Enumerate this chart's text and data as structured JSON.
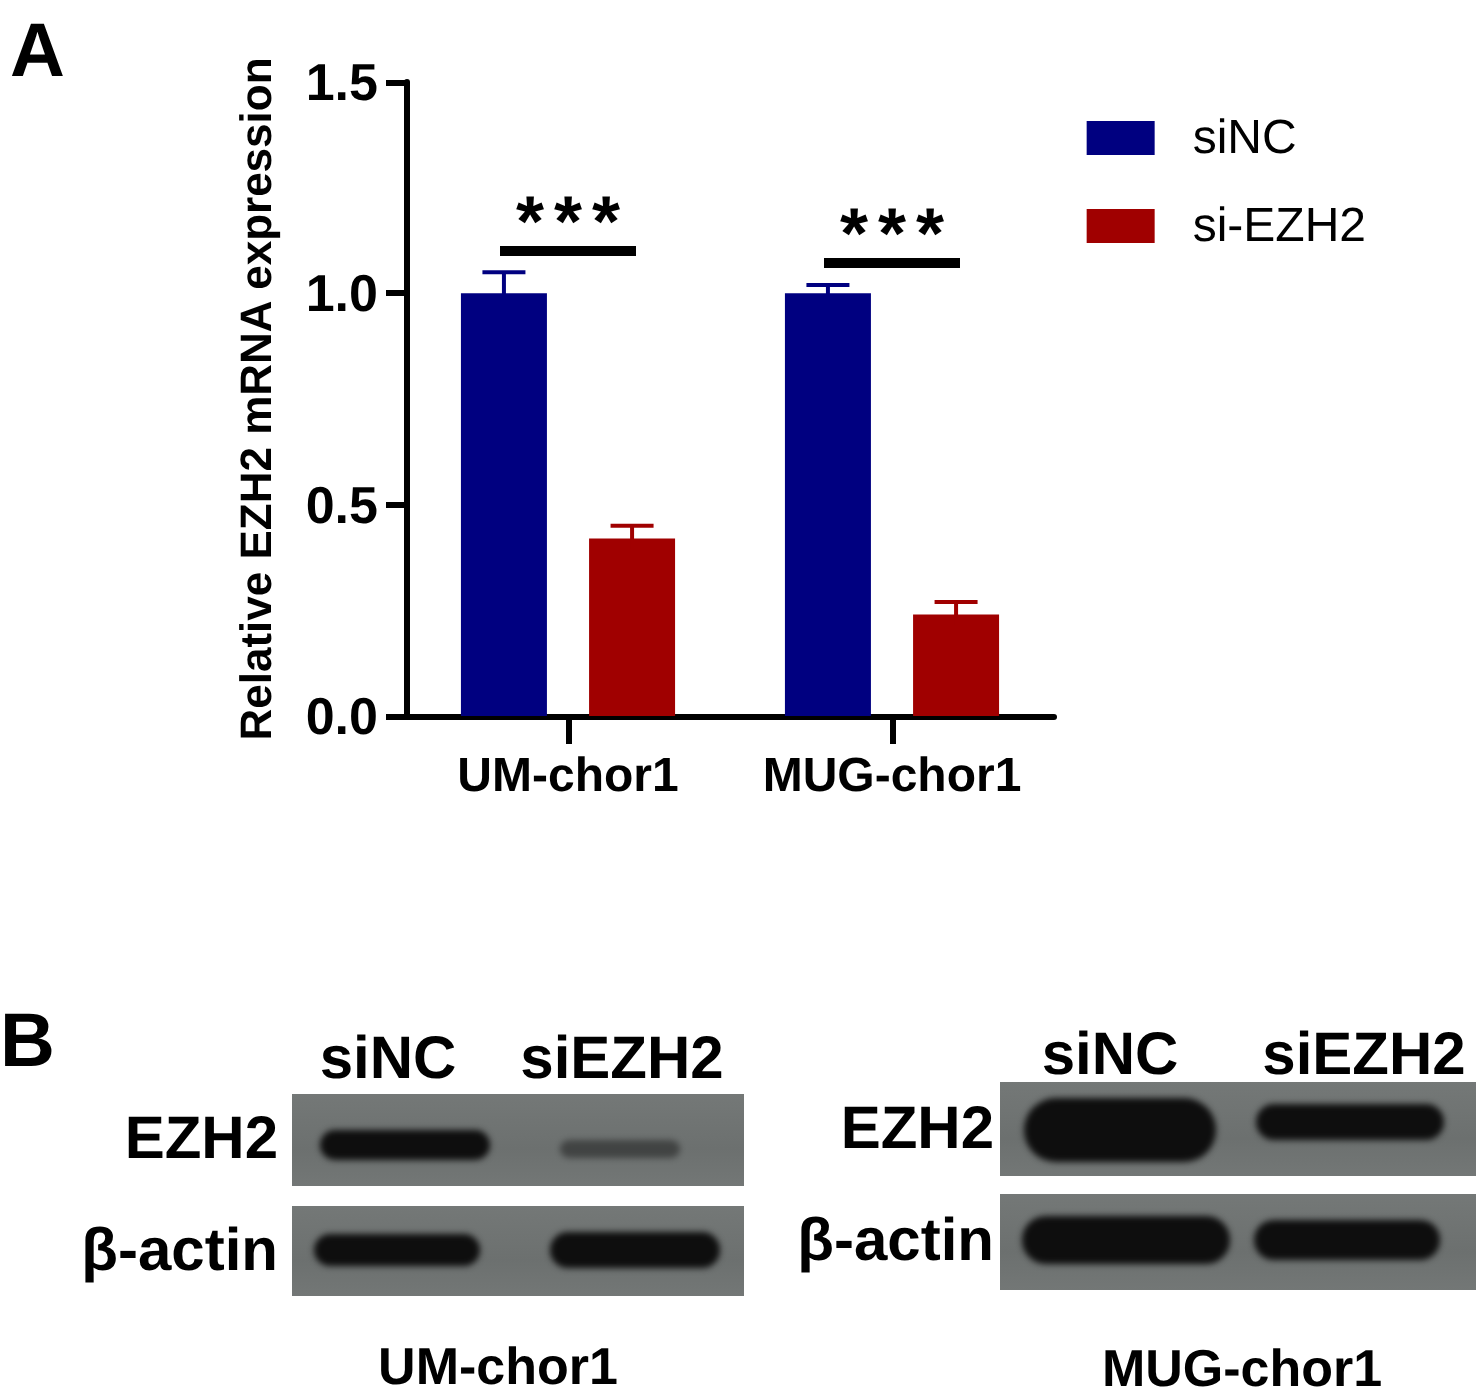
{
  "chart_data": [
    {
      "type": "bar",
      "title": "A",
      "ylabel": "Relative EZH2 mRNA expression",
      "categories": [
        "UM-chor1",
        "MUG-chor1"
      ],
      "series": [
        {
          "name": "siNC",
          "color": "#000080",
          "values": [
            1.0,
            1.0
          ],
          "errors": [
            0.05,
            0.02
          ]
        },
        {
          "name": "si-EZH2",
          "color": "#a00000",
          "values": [
            0.42,
            0.24
          ],
          "errors": [
            0.03,
            0.03
          ]
        }
      ],
      "ylim": [
        0,
        1.5
      ],
      "yticks": [
        {
          "value": 0,
          "label": "0.0"
        },
        0.5,
        {
          "value": 1,
          "label": "1.0"
        },
        1.5
      ],
      "legend": "top right",
      "annotations": [
        "***",
        "***"
      ]
    },
    {
      "type": "other",
      "title": "B",
      "annotations": [
        "siNC",
        "siEZH2",
        "EZH2",
        "β-actin",
        "UM-chor1",
        "siNC",
        "siEZH2",
        "EZH2",
        "β-actin",
        "MUG-chor1"
      ]
    }
  ]
}
